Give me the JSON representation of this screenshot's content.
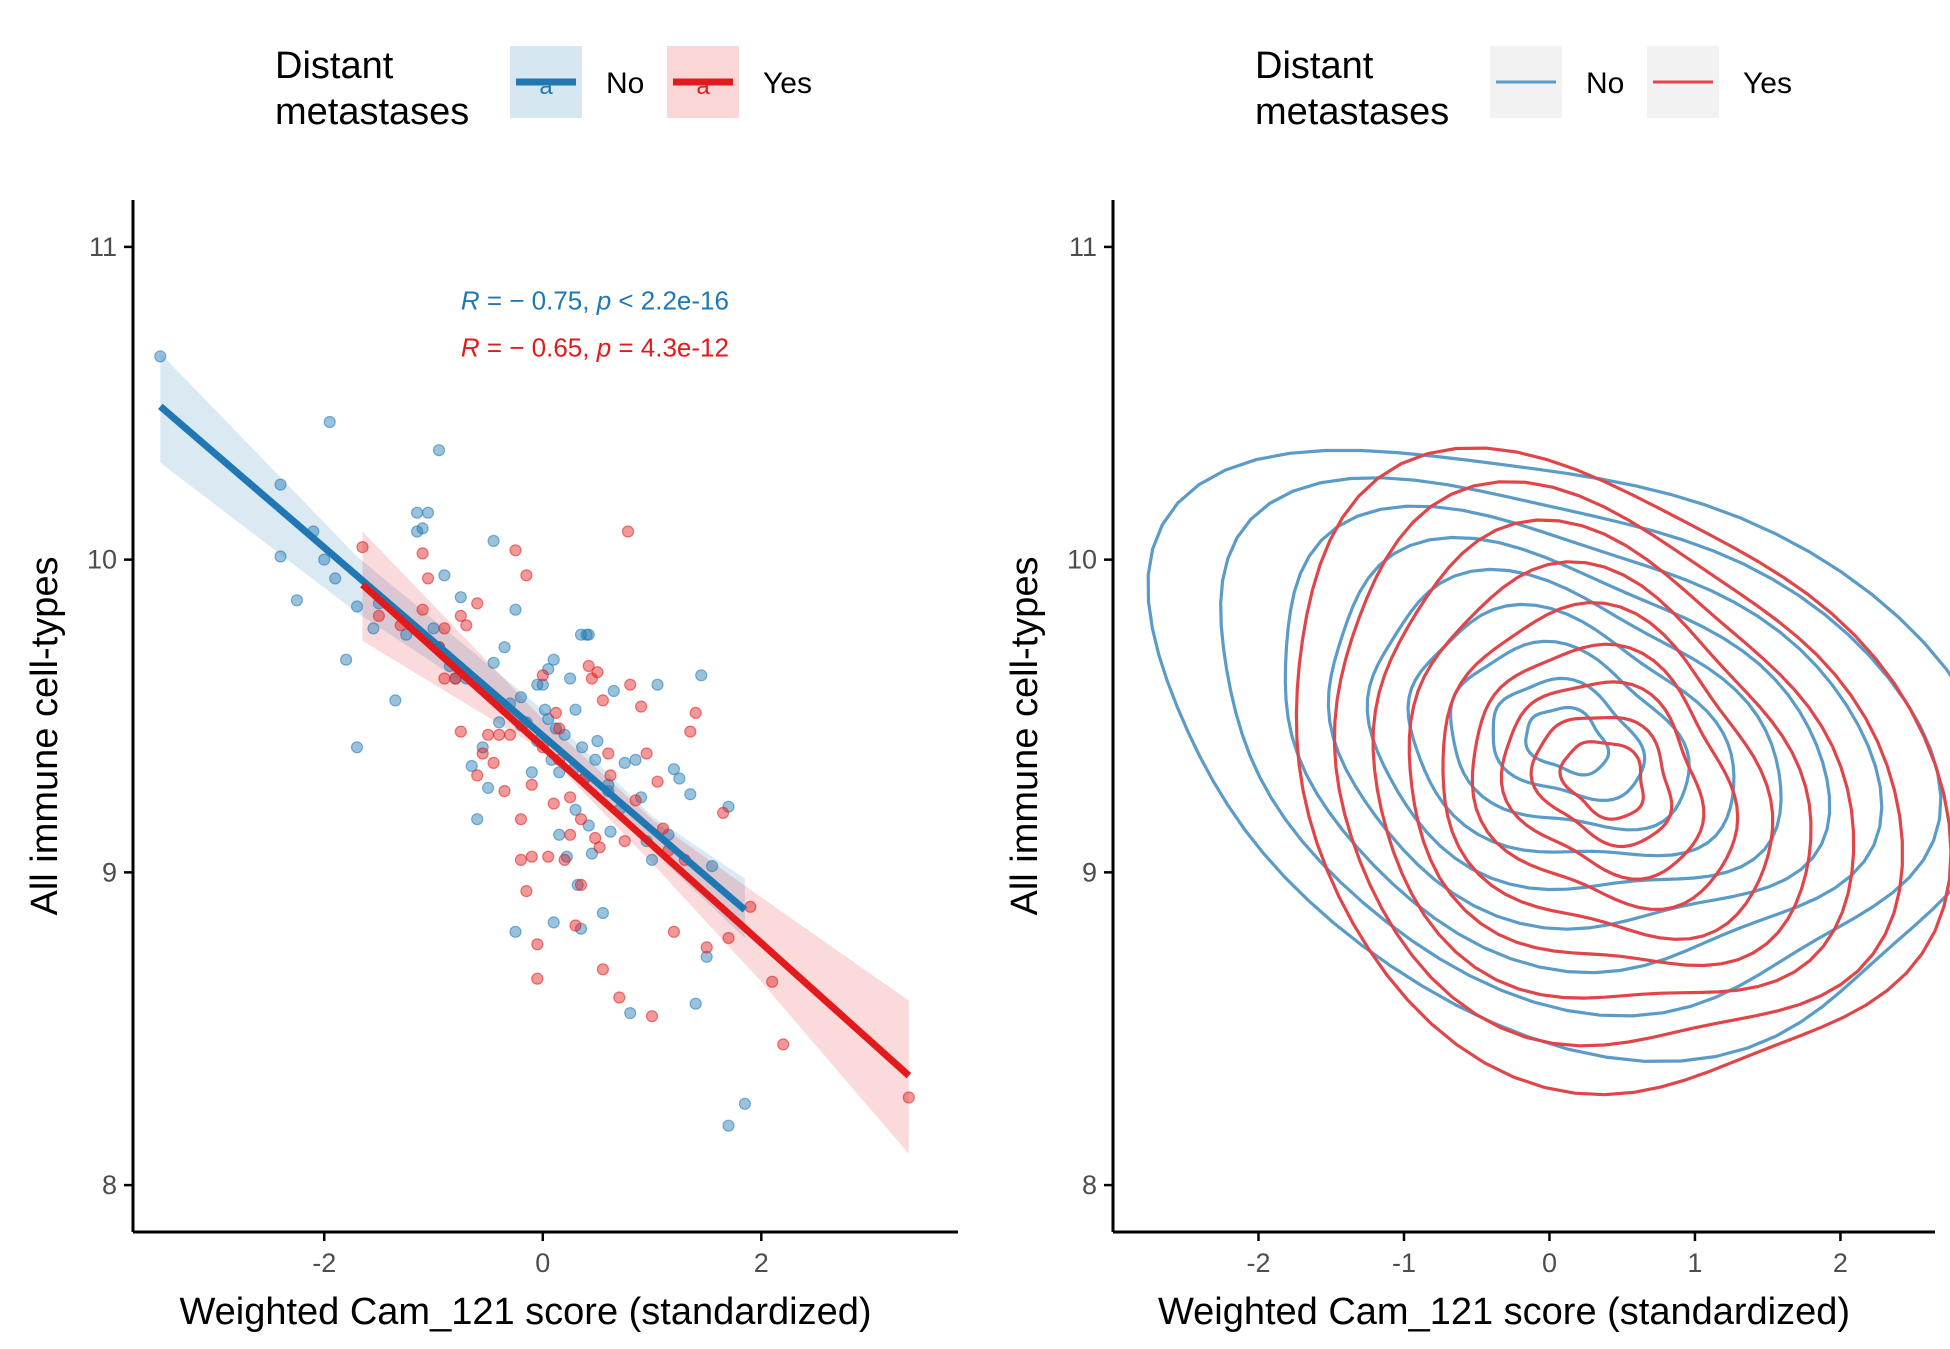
{
  "colors": {
    "no": "#1f78b4",
    "yes": "#e31a1c",
    "no_contour": "#5b9bc8",
    "yes_contour": "#e0454a",
    "axis": "#000000",
    "tick_text": "#4d4d4d"
  },
  "chart_data": [
    {
      "type": "scatter",
      "panel": "left",
      "xlabel": "Weighted Cam_121 score (standardized)",
      "ylabel": "All immune cell-types",
      "xlim": [
        -3.75,
        3.8
      ],
      "ylim": [
        7.85,
        11.15
      ],
      "xticks": [
        -2,
        0,
        2
      ],
      "xtick_labels": [
        "-2",
        "0",
        "2"
      ],
      "yticks": [
        8,
        9,
        10,
        11
      ],
      "ytick_labels": [
        "8",
        "9",
        "10",
        "11"
      ],
      "grid": false,
      "legend": {
        "title_lines": [
          "Distant",
          "metastases"
        ],
        "position": "top",
        "glyph_text": "a",
        "entries": [
          {
            "key": "no",
            "label": "No"
          },
          {
            "key": "yes",
            "label": "Yes"
          }
        ]
      },
      "annotations": [
        {
          "key": "no",
          "r_symbol": "R",
          "r_text": " = − 0.75, ",
          "p_symbol": "p",
          "p_text": " < 2.2e-16",
          "x": -0.75,
          "y": 10.8
        },
        {
          "key": "yes",
          "r_symbol": "R",
          "r_text": " = − 0.65, ",
          "p_symbol": "p",
          "p_text": " = 4.3e-12",
          "x": -0.75,
          "y": 10.65
        }
      ],
      "series": [
        {
          "name": "No",
          "key": "no",
          "regression": {
            "x": [
              -3.5,
              1.85
            ],
            "y": [
              10.49,
              8.88
            ]
          },
          "band": {
            "x": [
              -3.5,
              -1.7,
              0.0,
              1.0,
              1.85
            ],
            "lower": [
              10.31,
              9.83,
              9.44,
              9.07,
              8.79
            ],
            "upper": [
              10.66,
              10.01,
              9.52,
              9.18,
              8.98
            ]
          },
          "points": [
            [
              -3.5,
              10.65
            ],
            [
              -2.4,
              10.24
            ],
            [
              -2.4,
              10.01
            ],
            [
              -2.25,
              9.87
            ],
            [
              -2.1,
              10.09
            ],
            [
              -2.0,
              10.0
            ],
            [
              -1.9,
              9.94
            ],
            [
              -1.95,
              10.44
            ],
            [
              -1.8,
              9.68
            ],
            [
              -1.7,
              9.4
            ],
            [
              -1.7,
              9.85
            ],
            [
              -1.55,
              9.78
            ],
            [
              -1.5,
              9.86
            ],
            [
              -1.35,
              9.55
            ],
            [
              -1.25,
              9.76
            ],
            [
              -1.15,
              10.15
            ],
            [
              -1.15,
              10.09
            ],
            [
              -1.1,
              10.1
            ],
            [
              -1.05,
              10.15
            ],
            [
              -1.0,
              9.78
            ],
            [
              -0.95,
              9.72
            ],
            [
              -0.9,
              9.95
            ],
            [
              -0.85,
              9.66
            ],
            [
              -0.8,
              9.62
            ],
            [
              -0.75,
              9.88
            ],
            [
              -0.95,
              10.35
            ],
            [
              -0.7,
              9.62
            ],
            [
              -0.65,
              9.34
            ],
            [
              -0.55,
              9.4
            ],
            [
              -0.6,
              9.17
            ],
            [
              -0.45,
              9.67
            ],
            [
              -0.5,
              9.27
            ],
            [
              -0.4,
              9.48
            ],
            [
              -0.35,
              9.72
            ],
            [
              -0.3,
              9.54
            ],
            [
              -0.25,
              9.84
            ],
            [
              -0.2,
              9.56
            ],
            [
              -0.15,
              9.48
            ],
            [
              -0.1,
              9.32
            ],
            [
              -0.05,
              9.6
            ],
            [
              -0.05,
              9.42
            ],
            [
              0.0,
              9.6
            ],
            [
              0.02,
              9.52
            ],
            [
              0.05,
              9.65
            ],
            [
              0.05,
              9.49
            ],
            [
              0.08,
              9.36
            ],
            [
              0.1,
              9.68
            ],
            [
              0.12,
              9.46
            ],
            [
              0.15,
              9.32
            ],
            [
              0.15,
              9.12
            ],
            [
              0.2,
              9.44
            ],
            [
              0.22,
              9.05
            ],
            [
              0.25,
              9.62
            ],
            [
              0.28,
              9.33
            ],
            [
              0.3,
              9.2
            ],
            [
              0.32,
              8.96
            ],
            [
              0.35,
              9.76
            ],
            [
              0.36,
              9.4
            ],
            [
              0.38,
              9.3
            ],
            [
              0.4,
              9.76
            ],
            [
              0.42,
              9.76
            ],
            [
              0.42,
              9.15
            ],
            [
              0.45,
              9.06
            ],
            [
              0.48,
              9.36
            ],
            [
              0.5,
              9.42
            ],
            [
              0.55,
              8.87
            ],
            [
              0.6,
              9.26
            ],
            [
              0.62,
              9.13
            ],
            [
              0.65,
              9.58
            ],
            [
              0.7,
              9.2
            ],
            [
              0.75,
              9.35
            ],
            [
              0.8,
              8.55
            ],
            [
              0.85,
              9.36
            ],
            [
              0.9,
              9.24
            ],
            [
              0.95,
              9.1
            ],
            [
              1.0,
              9.04
            ],
            [
              1.05,
              9.6
            ],
            [
              1.15,
              9.12
            ],
            [
              1.2,
              9.33
            ],
            [
              1.25,
              9.3
            ],
            [
              1.35,
              9.25
            ],
            [
              1.4,
              8.58
            ],
            [
              1.45,
              9.63
            ],
            [
              1.5,
              8.73
            ],
            [
              1.55,
              9.02
            ],
            [
              1.7,
              9.21
            ],
            [
              1.7,
              8.19
            ],
            [
              1.85,
              8.26
            ],
            [
              -0.45,
              10.06
            ],
            [
              -0.25,
              8.81
            ],
            [
              0.1,
              8.84
            ],
            [
              0.35,
              8.82
            ],
            [
              -0.2,
              9.47
            ],
            [
              0.6,
              9.28
            ],
            [
              0.3,
              9.52
            ]
          ]
        },
        {
          "name": "Yes",
          "key": "yes",
          "regression": {
            "x": [
              -1.65,
              3.35
            ],
            "y": [
              9.92,
              8.35
            ]
          },
          "band": {
            "x": [
              -1.65,
              0.0,
              1.0,
              2.0,
              3.35
            ],
            "lower": [
              9.74,
              9.39,
              9.03,
              8.65,
              8.1
            ],
            "upper": [
              10.09,
              9.49,
              9.17,
              8.92,
              8.59
            ]
          },
          "points": [
            [
              -1.65,
              10.04
            ],
            [
              -1.5,
              9.82
            ],
            [
              -1.3,
              9.79
            ],
            [
              -1.1,
              10.02
            ],
            [
              -1.05,
              9.94
            ],
            [
              -1.1,
              9.84
            ],
            [
              -0.95,
              9.72
            ],
            [
              -0.9,
              9.62
            ],
            [
              -0.9,
              9.78
            ],
            [
              -0.8,
              9.62
            ],
            [
              -0.75,
              9.45
            ],
            [
              -0.7,
              9.79
            ],
            [
              -0.6,
              9.86
            ],
            [
              -0.55,
              9.38
            ],
            [
              -0.5,
              9.44
            ],
            [
              -0.45,
              9.35
            ],
            [
              -0.4,
              9.44
            ],
            [
              -0.3,
              9.44
            ],
            [
              -0.25,
              10.03
            ],
            [
              -0.2,
              9.17
            ],
            [
              -0.2,
              9.04
            ],
            [
              -0.15,
              8.94
            ],
            [
              -0.1,
              9.28
            ],
            [
              -0.1,
              9.05
            ],
            [
              -0.05,
              8.77
            ],
            [
              -0.05,
              8.66
            ],
            [
              0.0,
              9.63
            ],
            [
              0.0,
              9.4
            ],
            [
              0.05,
              9.05
            ],
            [
              0.1,
              9.22
            ],
            [
              0.12,
              9.51
            ],
            [
              0.15,
              9.36
            ],
            [
              0.2,
              9.04
            ],
            [
              0.25,
              9.12
            ],
            [
              0.3,
              8.83
            ],
            [
              0.35,
              9.17
            ],
            [
              0.35,
              8.96
            ],
            [
              0.38,
              9.3
            ],
            [
              0.42,
              9.66
            ],
            [
              0.45,
              9.62
            ],
            [
              0.48,
              9.11
            ],
            [
              0.5,
              9.64
            ],
            [
              0.52,
              9.08
            ],
            [
              0.55,
              9.55
            ],
            [
              0.55,
              8.69
            ],
            [
              0.6,
              9.38
            ],
            [
              0.62,
              9.31
            ],
            [
              0.7,
              8.6
            ],
            [
              0.75,
              9.1
            ],
            [
              0.78,
              10.09
            ],
            [
              0.8,
              9.6
            ],
            [
              0.85,
              9.23
            ],
            [
              0.9,
              9.53
            ],
            [
              0.95,
              9.38
            ],
            [
              1.0,
              8.54
            ],
            [
              1.05,
              9.29
            ],
            [
              1.1,
              9.14
            ],
            [
              1.15,
              9.07
            ],
            [
              1.2,
              8.81
            ],
            [
              1.3,
              9.04
            ],
            [
              1.35,
              9.45
            ],
            [
              1.4,
              9.51
            ],
            [
              1.5,
              8.76
            ],
            [
              1.65,
              9.19
            ],
            [
              1.7,
              8.79
            ],
            [
              1.9,
              8.89
            ],
            [
              2.1,
              8.65
            ],
            [
              2.2,
              8.45
            ],
            [
              3.35,
              8.28
            ],
            [
              -0.6,
              9.31
            ],
            [
              -0.15,
              9.95
            ],
            [
              0.25,
              9.24
            ],
            [
              -0.35,
              9.26
            ],
            [
              0.15,
              9.46
            ],
            [
              -0.75,
              9.82
            ]
          ]
        }
      ]
    },
    {
      "type": "contour",
      "panel": "right",
      "xlabel": "Weighted Cam_121 score (standardized)",
      "ylabel": "All immune cell-types",
      "xlim": [
        -3.0,
        2.65
      ],
      "ylim": [
        7.85,
        11.15
      ],
      "xticks": [
        -2,
        -1,
        0,
        1,
        2
      ],
      "xtick_labels": [
        "-2",
        "-1",
        "0",
        "1",
        "2"
      ],
      "yticks": [
        8,
        9,
        10,
        11
      ],
      "ytick_labels": [
        "8",
        "9",
        "10",
        "11"
      ],
      "grid": false,
      "legend": {
        "title_lines": [
          "Distant",
          "metastases"
        ],
        "position": "top",
        "entries": [
          {
            "key": "no",
            "label": "No"
          },
          {
            "key": "yes",
            "label": "Yes"
          }
        ]
      },
      "series": [
        {
          "name": "No",
          "key": "no",
          "center": [
            0.12,
            9.42
          ],
          "levels": [
            {
              "rx": 2.85,
              "ry": 0.92
            },
            {
              "rx": 2.45,
              "ry": 0.8
            },
            {
              "rx": 2.05,
              "ry": 0.69
            },
            {
              "rx": 1.72,
              "ry": 0.58
            },
            {
              "rx": 1.42,
              "ry": 0.48
            },
            {
              "rx": 1.12,
              "ry": 0.38
            },
            {
              "rx": 0.82,
              "ry": 0.28
            },
            {
              "rx": 0.52,
              "ry": 0.18
            },
            {
              "rx": 0.28,
              "ry": 0.1
            }
          ]
        },
        {
          "name": "Yes",
          "key": "yes",
          "center": [
            0.38,
            9.3
          ],
          "levels": [
            {
              "rx": 2.25,
              "ry": 0.98
            },
            {
              "rx": 1.95,
              "ry": 0.86
            },
            {
              "rx": 1.65,
              "ry": 0.74
            },
            {
              "rx": 1.38,
              "ry": 0.62
            },
            {
              "rx": 1.13,
              "ry": 0.51
            },
            {
              "rx": 0.9,
              "ry": 0.4
            },
            {
              "rx": 0.68,
              "ry": 0.3
            },
            {
              "rx": 0.47,
              "ry": 0.2
            },
            {
              "rx": 0.28,
              "ry": 0.12
            }
          ]
        }
      ]
    }
  ]
}
